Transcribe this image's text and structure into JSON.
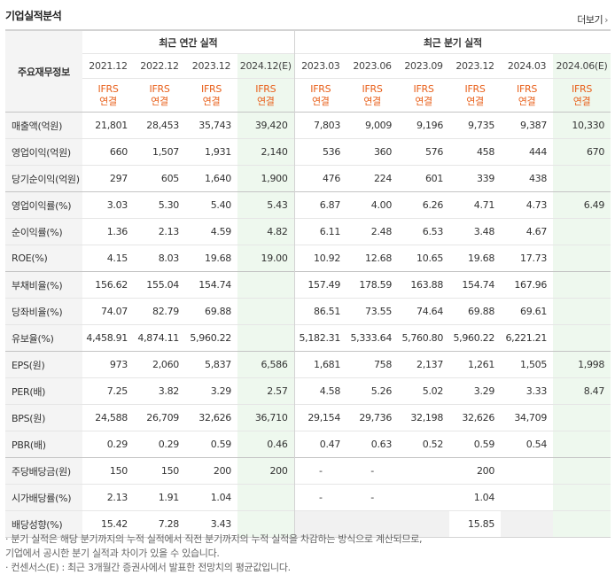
{
  "title": "기업실적분석",
  "more_label": "더보기",
  "header": {
    "row_label": "주요재무정보",
    "annual_group": "최근 연간 실적",
    "quarter_group": "최근 분기 실적",
    "periods": [
      "2021.12",
      "2022.12",
      "2023.12",
      "2024.12(E)",
      "2023.03",
      "2023.06",
      "2023.09",
      "2023.12",
      "2024.03",
      "2024.06(E)"
    ],
    "ifrs_top": "IFRS",
    "ifrs_bottom": "연결"
  },
  "rows": [
    {
      "label": "매출액(억원)",
      "values": [
        "21,801",
        "28,453",
        "35,743",
        "39,420",
        "7,803",
        "9,009",
        "9,196",
        "9,735",
        "9,387",
        "10,330"
      ]
    },
    {
      "label": "영업이익(억원)",
      "values": [
        "660",
        "1,507",
        "1,931",
        "2,140",
        "536",
        "360",
        "576",
        "458",
        "444",
        "670"
      ]
    },
    {
      "label": "당기순이익(억원)",
      "values": [
        "297",
        "605",
        "1,640",
        "1,900",
        "476",
        "224",
        "601",
        "339",
        "438",
        ""
      ]
    },
    {
      "label": "영업이익률(%)",
      "values": [
        "3.03",
        "5.30",
        "5.40",
        "5.43",
        "6.87",
        "4.00",
        "6.26",
        "4.71",
        "4.73",
        "6.49"
      ]
    },
    {
      "label": "순이익률(%)",
      "values": [
        "1.36",
        "2.13",
        "4.59",
        "4.82",
        "6.11",
        "2.48",
        "6.53",
        "3.48",
        "4.67",
        ""
      ]
    },
    {
      "label": "ROE(%)",
      "values": [
        "4.15",
        "8.03",
        "19.68",
        "19.00",
        "10.92",
        "12.68",
        "10.65",
        "19.68",
        "17.73",
        ""
      ]
    },
    {
      "label": "부채비율(%)",
      "values": [
        "156.62",
        "155.04",
        "154.74",
        "",
        "157.49",
        "178.59",
        "163.88",
        "154.74",
        "167.96",
        ""
      ]
    },
    {
      "label": "당좌비율(%)",
      "values": [
        "74.07",
        "82.79",
        "69.88",
        "",
        "86.51",
        "73.55",
        "74.64",
        "69.88",
        "69.61",
        ""
      ]
    },
    {
      "label": "유보율(%)",
      "values": [
        "4,458.91",
        "4,874.11",
        "5,960.22",
        "",
        "5,182.31",
        "5,333.64",
        "5,760.80",
        "5,960.22",
        "6,221.21",
        ""
      ]
    },
    {
      "label": "EPS(원)",
      "values": [
        "973",
        "2,060",
        "5,837",
        "6,586",
        "1,681",
        "758",
        "2,137",
        "1,261",
        "1,505",
        "1,998"
      ]
    },
    {
      "label": "PER(배)",
      "values": [
        "7.25",
        "3.82",
        "3.29",
        "2.57",
        "4.58",
        "5.26",
        "5.02",
        "3.29",
        "3.33",
        "8.47"
      ]
    },
    {
      "label": "BPS(원)",
      "values": [
        "24,588",
        "26,709",
        "32,626",
        "36,710",
        "29,154",
        "29,736",
        "32,198",
        "32,626",
        "34,709",
        ""
      ]
    },
    {
      "label": "PBR(배)",
      "values": [
        "0.29",
        "0.29",
        "0.59",
        "0.46",
        "0.47",
        "0.63",
        "0.52",
        "0.59",
        "0.54",
        ""
      ]
    },
    {
      "label": "주당배당금(원)",
      "values": [
        "150",
        "150",
        "200",
        "200",
        "-",
        "-",
        "",
        "200",
        "",
        ""
      ]
    },
    {
      "label": "시가배당률(%)",
      "values": [
        "2.13",
        "1.91",
        "1.04",
        "",
        "-",
        "-",
        "",
        "1.04",
        "",
        ""
      ]
    },
    {
      "label": "배당성향(%)",
      "values": [
        "15.42",
        "7.28",
        "3.43",
        "",
        "",
        "",
        "",
        "15.85",
        "",
        ""
      ]
    }
  ],
  "notes": [
    "· 분기 실적은 해당 분기까지의 누적 실적에서 직전 분기까지의 누적 실적을 차감하는 방식으로 계산되므로,",
    "  기업에서 공시한 분기 실적과 차이가 있을 수 있습니다.",
    "· 컨센서스(E) : 최근 3개월간 증권사에서 발표한 전망치의 평균값입니다."
  ]
}
